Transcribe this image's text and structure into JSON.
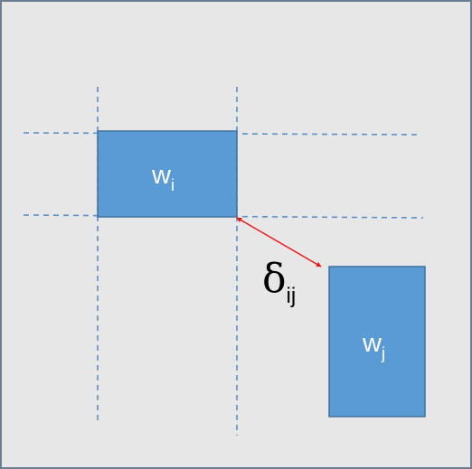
{
  "diagram": {
    "box_i": {
      "symbol": "w",
      "subscript": "i"
    },
    "box_j": {
      "symbol": "w",
      "subscript": "j"
    },
    "distance": {
      "symbol": "δ",
      "subscript": "ij"
    }
  },
  "colors": {
    "canvas": "#e7e7e7",
    "frame": "#6a7f91",
    "box_fill": "#5b9bd5",
    "box_stroke": "#41719c",
    "guide_line": "#5b8fc7",
    "arrow": "#ee1111"
  }
}
